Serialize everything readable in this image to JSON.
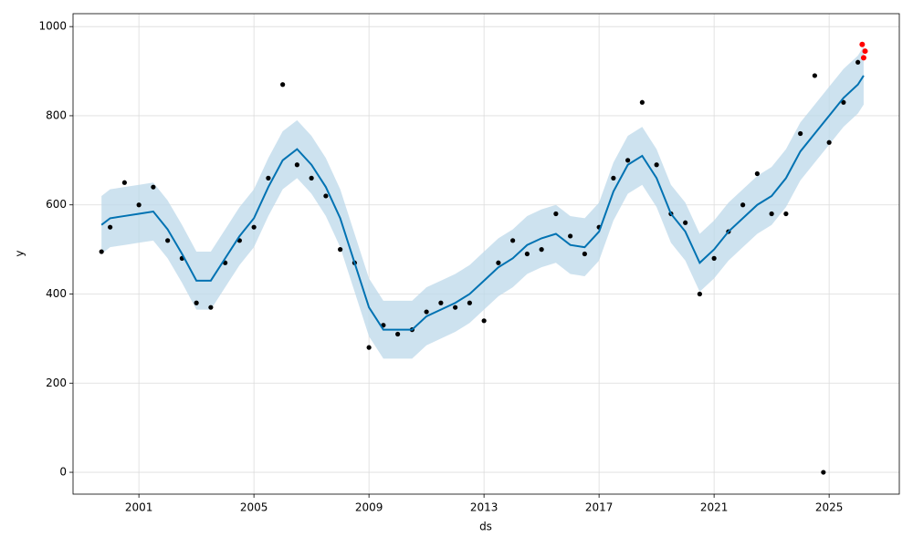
{
  "chart_data": {
    "type": "line",
    "x_label": "ds",
    "y_label": "y",
    "xlim": [
      1998.71,
      2027.44
    ],
    "ylim": [
      -49,
      1029
    ],
    "xticks": [
      2001,
      2005,
      2009,
      2013,
      2017,
      2021,
      2025
    ],
    "yticks": [
      0,
      200,
      400,
      600,
      800,
      1000
    ],
    "grid": true,
    "x": [
      1999.7,
      2000.0,
      2000.5,
      2001.0,
      2001.5,
      2002.0,
      2002.5,
      2003.0,
      2003.5,
      2004.0,
      2004.5,
      2005.0,
      2005.5,
      2006.0,
      2006.5,
      2007.0,
      2007.5,
      2008.0,
      2008.5,
      2009.0,
      2009.5,
      2010.0,
      2010.5,
      2011.0,
      2011.5,
      2012.0,
      2012.5,
      2013.0,
      2013.5,
      2014.0,
      2014.5,
      2015.0,
      2015.5,
      2016.0,
      2016.5,
      2017.0,
      2017.5,
      2018.0,
      2018.5,
      2019.0,
      2019.5,
      2020.0,
      2020.5,
      2021.0,
      2021.5,
      2022.0,
      2022.5,
      2023.0,
      2023.5,
      2024.0,
      2024.5,
      2025.0,
      2025.5,
      2026.0,
      2026.2
    ],
    "forecast": {
      "color": "#0072b2",
      "values": [
        555,
        570,
        575,
        580,
        585,
        545,
        490,
        430,
        430,
        480,
        530,
        570,
        640,
        700,
        725,
        690,
        640,
        570,
        470,
        370,
        320,
        320,
        320,
        350,
        365,
        380,
        400,
        430,
        460,
        480,
        510,
        525,
        535,
        510,
        505,
        540,
        630,
        690,
        710,
        660,
        580,
        540,
        470,
        500,
        540,
        570,
        600,
        620,
        660,
        720,
        760,
        800,
        840,
        870,
        890
      ]
    },
    "band": {
      "color": "#bcd8ea",
      "upper": [
        620,
        635,
        640,
        645,
        650,
        610,
        555,
        495,
        495,
        545,
        595,
        635,
        705,
        765,
        790,
        755,
        705,
        635,
        535,
        435,
        385,
        385,
        385,
        415,
        430,
        445,
        465,
        495,
        525,
        545,
        575,
        590,
        600,
        575,
        570,
        605,
        695,
        755,
        775,
        725,
        645,
        605,
        535,
        565,
        605,
        635,
        665,
        685,
        725,
        785,
        825,
        865,
        905,
        935,
        955
      ],
      "lower": [
        490,
        505,
        510,
        515,
        520,
        480,
        425,
        365,
        365,
        415,
        465,
        505,
        575,
        635,
        660,
        625,
        575,
        505,
        405,
        305,
        255,
        255,
        255,
        285,
        300,
        315,
        335,
        365,
        395,
        415,
        445,
        460,
        470,
        445,
        440,
        475,
        565,
        625,
        645,
        595,
        515,
        475,
        405,
        435,
        475,
        505,
        535,
        555,
        595,
        655,
        695,
        735,
        775,
        805,
        825
      ]
    },
    "observed": {
      "color": "#000000",
      "x": [
        1999.7,
        2000.0,
        2000.5,
        2001.0,
        2001.5,
        2002.0,
        2002.5,
        2003.0,
        2003.5,
        2004.0,
        2004.5,
        2005.0,
        2005.5,
        2006.0,
        2006.5,
        2007.0,
        2007.5,
        2008.0,
        2008.5,
        2009.0,
        2009.5,
        2010.0,
        2010.5,
        2011.0,
        2011.5,
        2012.0,
        2012.5,
        2013.0,
        2013.5,
        2014.0,
        2014.5,
        2015.0,
        2015.5,
        2016.0,
        2016.5,
        2017.0,
        2017.5,
        2018.0,
        2018.5,
        2019.0,
        2019.5,
        2020.0,
        2020.5,
        2021.0,
        2021.5,
        2022.0,
        2022.5,
        2023.0,
        2023.5,
        2024.0,
        2024.5,
        2024.8,
        2025.0,
        2025.5,
        2026.0
      ],
      "values": [
        495,
        550,
        650,
        600,
        640,
        520,
        480,
        380,
        370,
        470,
        520,
        550,
        660,
        870,
        690,
        660,
        620,
        500,
        470,
        280,
        330,
        310,
        320,
        360,
        380,
        370,
        380,
        340,
        470,
        520,
        490,
        500,
        580,
        530,
        490,
        550,
        660,
        700,
        830,
        690,
        580,
        560,
        400,
        480,
        540,
        600,
        670,
        580,
        580,
        760,
        890,
        0,
        740,
        830,
        920
      ]
    },
    "test": {
      "color": "#ff0000",
      "x": [
        2026.15,
        2026.2,
        2026.25
      ],
      "values": [
        960,
        930,
        945
      ]
    }
  }
}
